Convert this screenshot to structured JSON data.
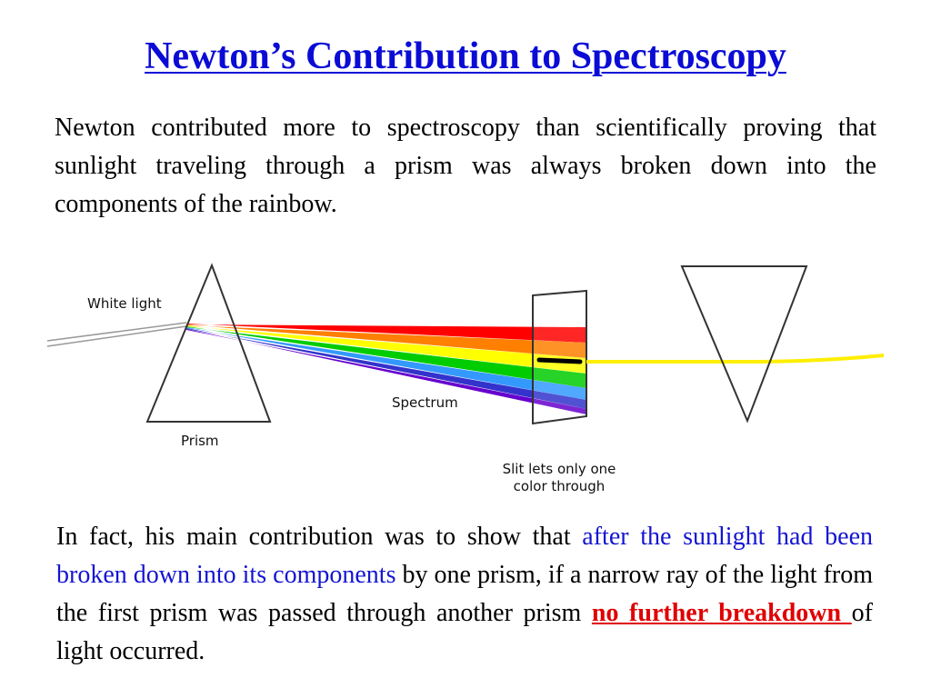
{
  "slide": {
    "title": "Newton’s Contribution to Spectroscopy",
    "paragraph1": "Newton contributed more to spectroscopy than scientifically proving that sunlight traveling through a prism was always broken down into the components of the rainbow.",
    "paragraph2": {
      "part1": "In fact, his main contribution was to show that ",
      "highlight_blue": "after the sunlight had been broken down into its components",
      "part2": " by one prism, if a narrow ray of the light from the first prism was passed through another prism ",
      "highlight_red": "no further breakdown ",
      "part3": "of light occurred."
    },
    "colors": {
      "title": "#0b0bd6",
      "blue_text": "#1414d2",
      "red_text": "#e00000"
    }
  },
  "diagram": {
    "labels": {
      "white_light": "White light",
      "prism": "Prism",
      "spectrum": "Spectrum",
      "slit_line1": "Slit lets only one",
      "slit_line2": "color through"
    },
    "spectrum_colors": [
      "#ff0000",
      "#ff7f00",
      "#ffff00",
      "#00cc00",
      "#3399ff",
      "#3333cc",
      "#6600cc"
    ],
    "output_ray_color": "#ffee00"
  }
}
